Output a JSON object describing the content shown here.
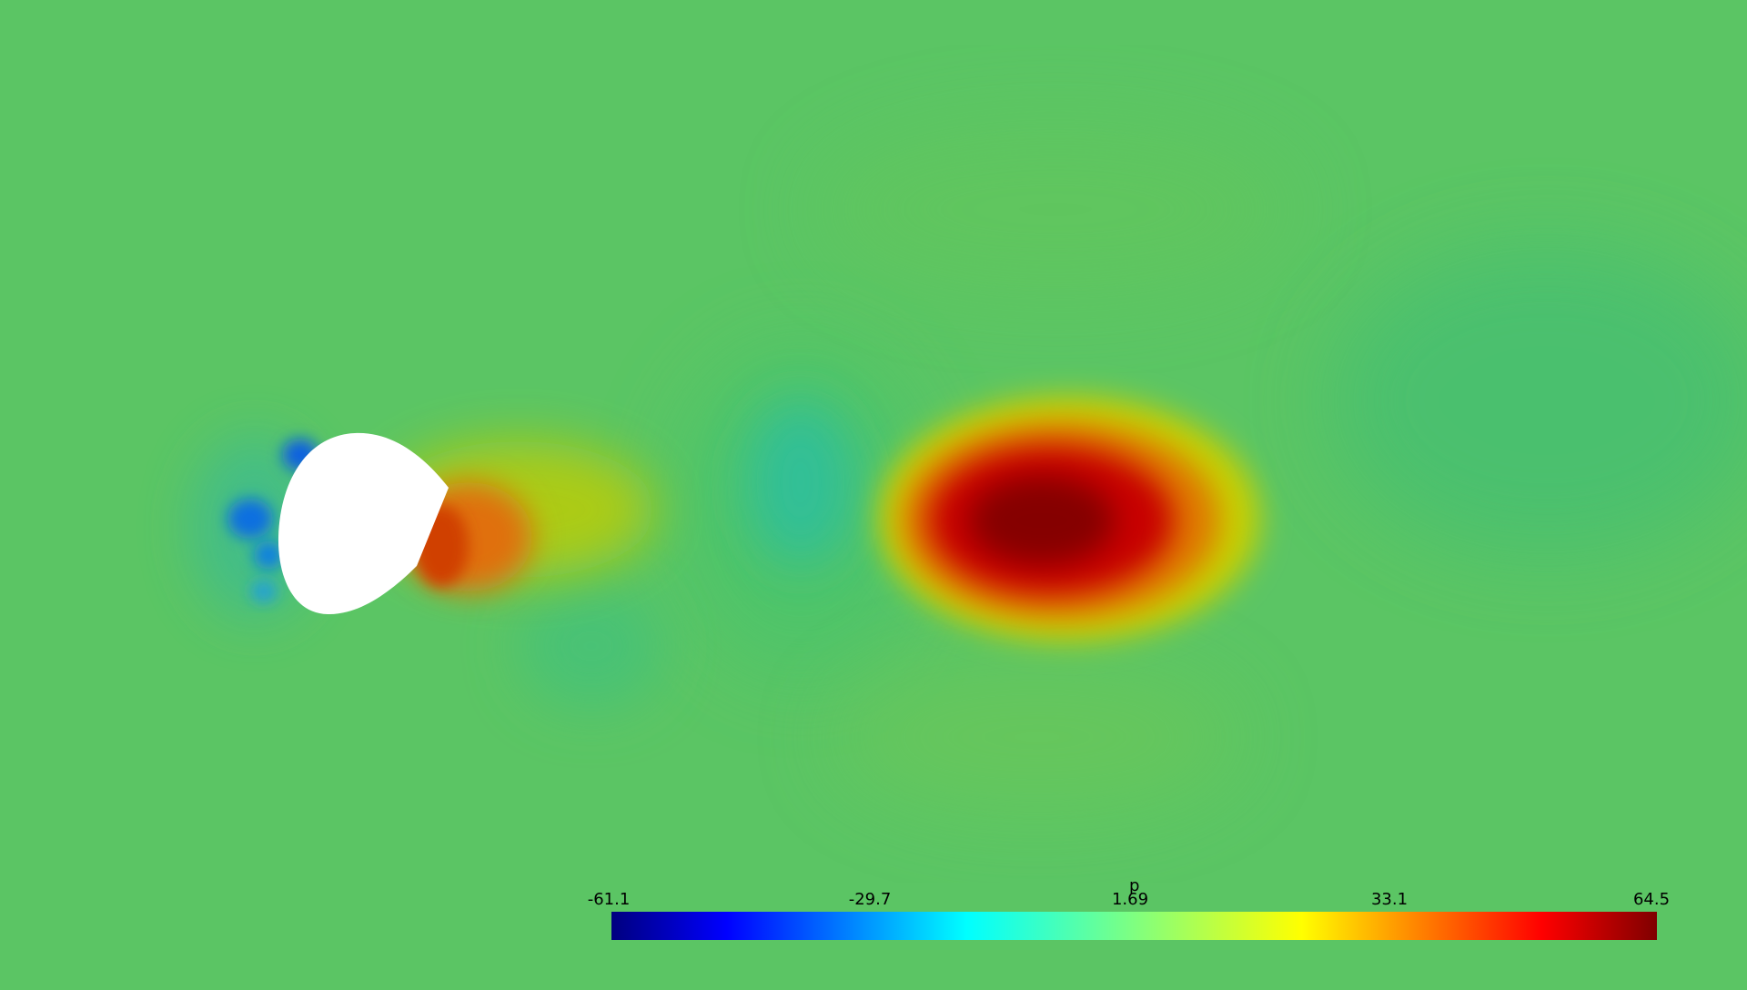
{
  "scalar_field": {
    "name": "p",
    "range": [
      -61.1,
      64.5
    ],
    "colormap": [
      "#000080",
      "#0000ff",
      "#00ffff",
      "#ffff00",
      "#ff0000",
      "#800000"
    ],
    "background_color": "#5bc564",
    "obstacle_color": "#ffffff"
  },
  "legend": {
    "title": "p",
    "ticks": [
      "-61.1",
      "-29.7",
      "1.69",
      "33.1",
      "64.5"
    ]
  }
}
